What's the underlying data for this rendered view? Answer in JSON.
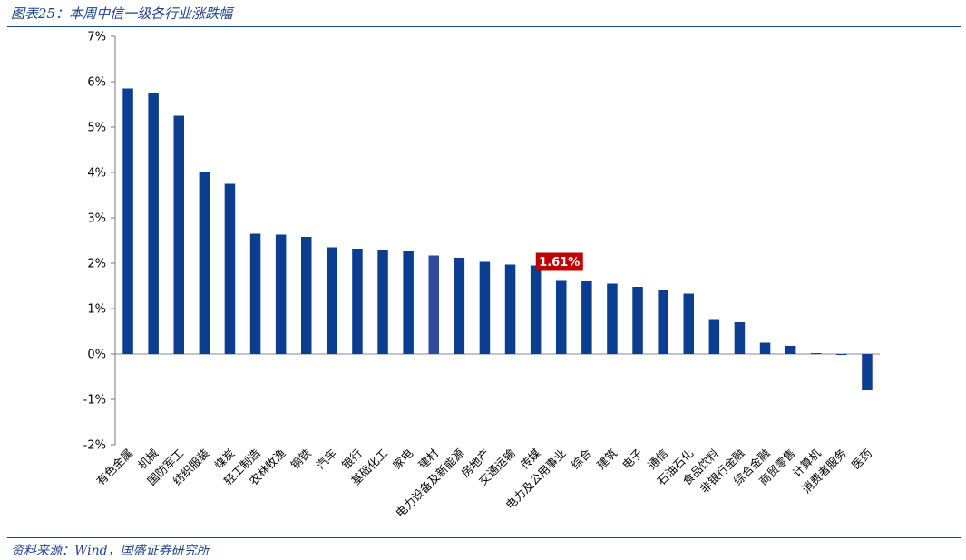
{
  "header": {
    "title": "图表25：本周中信一级各行业涨跌幅"
  },
  "footer": {
    "source": "资料来源：Wind，国盛证券研究所"
  },
  "colors": {
    "bar": "#0b3d91",
    "bar_highlight": "#2b4aa0",
    "callout": "#c00000",
    "rule": "#1f3f8f"
  },
  "chart_data": {
    "type": "bar",
    "categories": [
      "有色金属",
      "机械",
      "国防军工",
      "纺织服装",
      "煤炭",
      "轻工制造",
      "农林牧渔",
      "钢铁",
      "汽车",
      "银行",
      "基础化工",
      "家电",
      "建材",
      "电力设备及新能源",
      "房地产",
      "交通运输",
      "传媒",
      "电力及公用事业",
      "综合",
      "建筑",
      "电子",
      "通信",
      "石油石化",
      "食品饮料",
      "非银行金融",
      "综合金融",
      "商贸零售",
      "计算机",
      "消费者服务",
      "医药"
    ],
    "values": [
      5.85,
      5.75,
      5.25,
      4.0,
      3.75,
      2.65,
      2.63,
      2.58,
      2.35,
      2.32,
      2.3,
      2.28,
      2.17,
      2.12,
      2.03,
      1.97,
      1.95,
      1.61,
      1.6,
      1.55,
      1.48,
      1.41,
      1.33,
      0.75,
      0.7,
      0.25,
      0.18,
      0.02,
      -0.02,
      -0.8
    ],
    "ylim": [
      -2,
      7
    ],
    "yticks": [
      "-2%",
      "-1%",
      "0%",
      "1%",
      "2%",
      "3%",
      "4%",
      "5%",
      "6%",
      "7%"
    ],
    "highlight_index": 12,
    "annotation": {
      "text": "1.61%",
      "category_index": 17
    },
    "title": "",
    "xlabel": "",
    "ylabel": ""
  }
}
